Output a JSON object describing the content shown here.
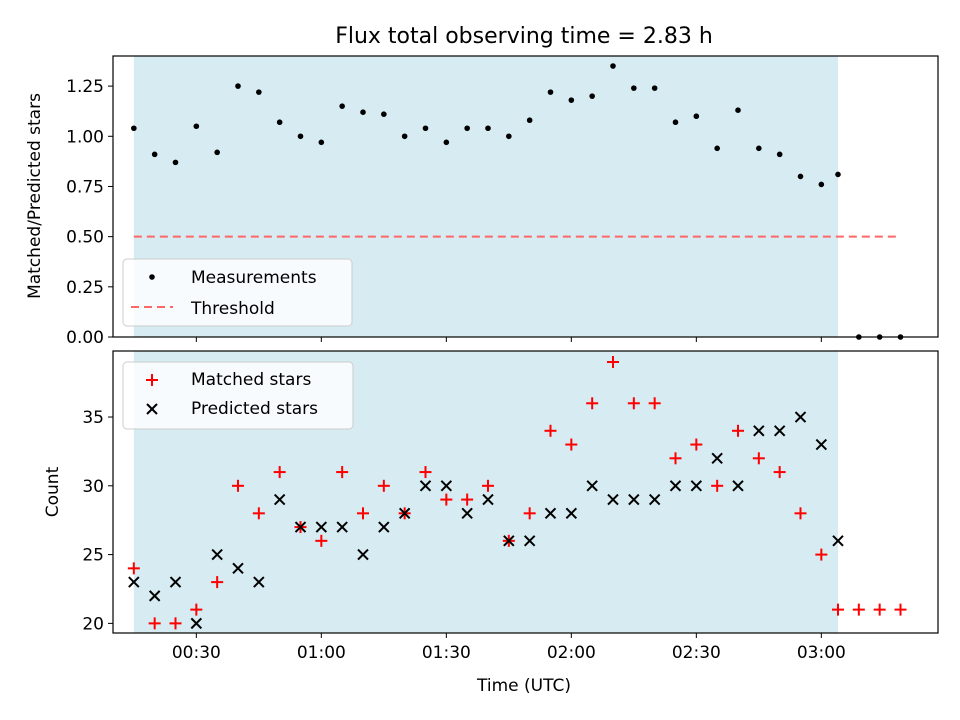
{
  "chart_data": [
    {
      "type": "scatter",
      "title": "Flux total observing time = 2.83 h",
      "xlabel": "",
      "ylabel": "Matched/Predicted stars",
      "xlim": [
        "00:10",
        "03:28"
      ],
      "ylim": [
        0,
        1.4
      ],
      "yticks": [
        0.0,
        0.25,
        0.5,
        0.75,
        1.0,
        1.25
      ],
      "ytick_labels": [
        "0.00",
        "0.25",
        "0.50",
        "0.75",
        "1.00",
        "1.25"
      ],
      "shaded_span": [
        "00:15",
        "03:04"
      ],
      "shade_color": "#add8e6",
      "legend_position": "lower-left",
      "series": [
        {
          "name": "Measurements",
          "marker": "dot",
          "color": "#000000",
          "x": [
            "00:15",
            "00:20",
            "00:25",
            "00:30",
            "00:35",
            "00:40",
            "00:45",
            "00:50",
            "00:55",
            "01:00",
            "01:05",
            "01:10",
            "01:15",
            "01:20",
            "01:25",
            "01:30",
            "01:35",
            "01:40",
            "01:45",
            "01:50",
            "01:55",
            "02:00",
            "02:05",
            "02:10",
            "02:15",
            "02:20",
            "02:25",
            "02:30",
            "02:35",
            "02:40",
            "02:45",
            "02:50",
            "02:55",
            "03:00",
            "03:04",
            "03:09",
            "03:14",
            "03:19"
          ],
          "y": [
            1.04,
            0.91,
            0.87,
            1.05,
            0.92,
            1.25,
            1.22,
            1.07,
            1.0,
            0.97,
            1.15,
            1.12,
            1.11,
            1.0,
            1.04,
            0.97,
            1.04,
            1.04,
            1.0,
            1.08,
            1.22,
            1.18,
            1.2,
            1.35,
            1.24,
            1.24,
            1.07,
            1.1,
            0.94,
            1.13,
            0.94,
            0.91,
            0.8,
            0.76,
            0.81,
            0.0,
            0.0,
            0.0
          ]
        },
        {
          "name": "Threshold",
          "style": "dashed",
          "color": "#ff6666",
          "x": [
            "00:15",
            "03:19"
          ],
          "y": [
            0.5,
            0.5
          ]
        }
      ]
    },
    {
      "type": "scatter",
      "title": "",
      "xlabel": "Time (UTC)",
      "ylabel": "Count",
      "xlim": [
        "00:10",
        "03:28"
      ],
      "ylim": [
        19.3,
        39.8
      ],
      "yticks": [
        20,
        25,
        30,
        35
      ],
      "ytick_labels": [
        "20",
        "25",
        "30",
        "35"
      ],
      "xticks": [
        "00:30",
        "01:00",
        "01:30",
        "02:00",
        "02:30",
        "03:00"
      ],
      "shaded_span": [
        "00:15",
        "03:04"
      ],
      "shade_color": "#add8e6",
      "legend_position": "upper-left",
      "series": [
        {
          "name": "Matched stars",
          "marker": "plus",
          "color": "#ff0000",
          "x": [
            "00:15",
            "00:20",
            "00:25",
            "00:30",
            "00:35",
            "00:40",
            "00:45",
            "00:50",
            "00:55",
            "01:00",
            "01:05",
            "01:10",
            "01:15",
            "01:20",
            "01:25",
            "01:30",
            "01:35",
            "01:40",
            "01:45",
            "01:50",
            "01:55",
            "02:00",
            "02:05",
            "02:10",
            "02:15",
            "02:20",
            "02:25",
            "02:30",
            "02:35",
            "02:40",
            "02:45",
            "02:50",
            "02:55",
            "03:00",
            "03:04",
            "03:09",
            "03:14",
            "03:19"
          ],
          "y": [
            24,
            20,
            20,
            21,
            23,
            30,
            28,
            31,
            27,
            26,
            31,
            28,
            30,
            28,
            31,
            29,
            29,
            30,
            26,
            28,
            34,
            33,
            36,
            39,
            36,
            36,
            32,
            33,
            30,
            34,
            32,
            31,
            28,
            25,
            21,
            21,
            21,
            21
          ]
        },
        {
          "name": "Predicted stars",
          "marker": "x",
          "color": "#000000",
          "x": [
            "00:15",
            "00:20",
            "00:25",
            "00:30",
            "00:35",
            "00:40",
            "00:45",
            "00:50",
            "00:55",
            "01:00",
            "01:05",
            "01:10",
            "01:15",
            "01:20",
            "01:25",
            "01:30",
            "01:35",
            "01:40",
            "01:45",
            "01:50",
            "01:55",
            "02:00",
            "02:05",
            "02:10",
            "02:15",
            "02:20",
            "02:25",
            "02:30",
            "02:35",
            "02:40",
            "02:45",
            "02:50",
            "02:55",
            "03:00",
            "03:04"
          ],
          "y": [
            23,
            22,
            23,
            20,
            25,
            24,
            23,
            29,
            27,
            27,
            27,
            25,
            27,
            28,
            30,
            30,
            28,
            29,
            26,
            26,
            28,
            28,
            30,
            29,
            29,
            29,
            30,
            30,
            32,
            30,
            34,
            34,
            35,
            33,
            26
          ]
        }
      ]
    }
  ]
}
